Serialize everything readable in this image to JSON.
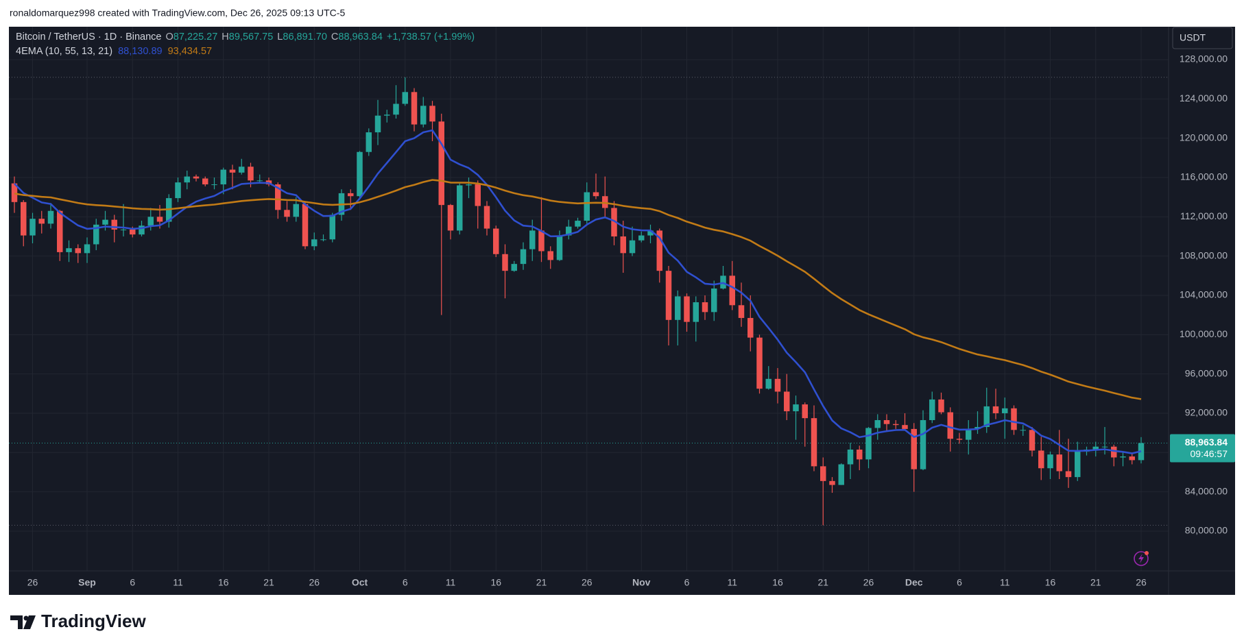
{
  "attribution": "ronaldomarquez998 created with TradingView.com, Dec 26, 2025 09:13 UTC-5",
  "brand": "TradingView",
  "chart_data": {
    "type": "candlestick",
    "legend": {
      "symbol": "Bitcoin / TetherUS · 1D · Binance",
      "ohlc": [
        {
          "key": "O",
          "value": "87,225.27"
        },
        {
          "key": "H",
          "value": "89,567.75"
        },
        {
          "key": "L",
          "value": "86,891.70"
        },
        {
          "key": "C",
          "value": "88,963.84"
        }
      ],
      "change": "+1,738.57 (+1.99%)",
      "indicator": "4EMA (10, 55, 13, 21)",
      "indicator_values": [
        "88,130.89",
        "93,434.57"
      ]
    },
    "currency": "USDT",
    "price_tag": {
      "price": "88,963.84",
      "countdown": "09:46:57"
    },
    "up_color": "#26a69a",
    "down_color": "#ef5350",
    "grid": true,
    "categories": [
      null,
      null,
      "26",
      null,
      null,
      null,
      null,
      null,
      "Sep",
      null,
      null,
      null,
      null,
      "6",
      null,
      null,
      null,
      null,
      "11",
      null,
      null,
      null,
      null,
      "16",
      null,
      null,
      null,
      null,
      "21",
      null,
      null,
      null,
      null,
      "26",
      null,
      null,
      null,
      null,
      "Oct",
      null,
      null,
      null,
      null,
      "6",
      null,
      null,
      null,
      null,
      "11",
      null,
      null,
      null,
      null,
      "16",
      null,
      null,
      null,
      null,
      "21",
      null,
      null,
      null,
      null,
      "26",
      null,
      null,
      null,
      null,
      null,
      "Nov",
      null,
      null,
      null,
      null,
      "6",
      null,
      null,
      null,
      null,
      "11",
      null,
      null,
      null,
      null,
      "16",
      null,
      null,
      null,
      null,
      "21",
      null,
      null,
      null,
      null,
      "26",
      null,
      null,
      null,
      null,
      "Dec",
      null,
      null,
      null,
      null,
      "6",
      null,
      null,
      null,
      null,
      "11",
      null,
      null,
      null,
      null,
      "16",
      null,
      null,
      null,
      null,
      "21",
      null,
      null,
      null,
      null,
      "26"
    ],
    "ohlc": {
      "open": [
        115400,
        113500,
        110100,
        111800,
        111300,
        112600,
        108400,
        108800,
        108300,
        109200,
        111200,
        111700,
        110700,
        110700,
        110200,
        111100,
        112000,
        111500,
        113900,
        115500,
        116100,
        115900,
        115300,
        115300,
        116800,
        116500,
        117100,
        115700,
        115700,
        115300,
        112700,
        112000,
        113300,
        109000,
        109700,
        109700,
        112200,
        114400,
        114100,
        118600,
        120600,
        122300,
        122400,
        123500,
        124700,
        121400,
        123300,
        121700,
        113200,
        110600,
        115200,
        115300,
        113100,
        110800,
        108200,
        106500,
        107200,
        108700,
        110600,
        108500,
        107600,
        110100,
        111000,
        111600,
        114500,
        114100,
        112900,
        110000,
        108300,
        109600,
        110100,
        110600,
        106500,
        101500,
        103900,
        101300,
        103300,
        102300,
        104700,
        106000,
        103000,
        101700,
        99700,
        94500,
        95500,
        94200,
        92200,
        92900,
        91500,
        86600,
        85100,
        84700,
        86800,
        88300,
        87300,
        90500,
        91300,
        90900,
        90800,
        90400,
        86300,
        91300,
        93400,
        92100,
        89400,
        89300,
        90400,
        90600,
        92700,
        92000,
        92500,
        90300,
        90300,
        88200,
        86400,
        87800,
        86100,
        85500,
        88100,
        88300,
        88600,
        88600,
        87500,
        87600,
        87225.27
      ],
      "high": [
        116100,
        113700,
        112400,
        112600,
        113400,
        112700,
        109600,
        109200,
        109900,
        111800,
        112600,
        112200,
        113300,
        111000,
        111600,
        112900,
        113200,
        114300,
        116000,
        116700,
        116300,
        116100,
        116000,
        117000,
        117300,
        117900,
        117500,
        116300,
        116000,
        115500,
        113600,
        114000,
        113600,
        110400,
        110200,
        112400,
        114800,
        114800,
        118700,
        121000,
        123900,
        122900,
        125400,
        126200,
        125100,
        124200,
        123800,
        122500,
        113300,
        115400,
        116000,
        115700,
        113600,
        111100,
        109200,
        107500,
        109400,
        111700,
        114000,
        109000,
        110600,
        111700,
        111900,
        115500,
        116400,
        116100,
        113600,
        111600,
        111000,
        110500,
        111200,
        110800,
        107000,
        104500,
        104200,
        103900,
        104000,
        105500,
        107000,
        107500,
        105300,
        104000,
        100000,
        96800,
        96600,
        96000,
        93800,
        93100,
        92800,
        87500,
        85500,
        86900,
        89000,
        88700,
        90600,
        91900,
        91900,
        91300,
        92000,
        91000,
        92300,
        94200,
        94100,
        92600,
        90000,
        91300,
        92200,
        94600,
        94500,
        93600,
        92800,
        90800,
        90600,
        89600,
        88100,
        90300,
        89400,
        89100,
        88600,
        89100,
        90600,
        88800,
        88000,
        87900,
        89567.75
      ],
      "low": [
        112400,
        109000,
        109300,
        110300,
        110800,
        107500,
        107400,
        107300,
        107300,
        108600,
        110600,
        109400,
        110000,
        109900,
        110000,
        110600,
        110800,
        110900,
        113500,
        114800,
        115600,
        115100,
        114800,
        114300,
        114800,
        116300,
        115000,
        115400,
        115100,
        111800,
        111500,
        111500,
        108700,
        108600,
        109500,
        109400,
        111600,
        112700,
        113900,
        118200,
        119300,
        121600,
        122000,
        123300,
        120700,
        121100,
        119700,
        102000,
        109700,
        110200,
        113900,
        110800,
        110100,
        107900,
        103700,
        106400,
        106600,
        107500,
        107400,
        106700,
        107500,
        109700,
        110800,
        111300,
        113800,
        112000,
        109100,
        106300,
        108000,
        109400,
        109300,
        105300,
        98900,
        98900,
        100300,
        99300,
        101500,
        101400,
        104600,
        102500,
        100800,
        98300,
        94000,
        94400,
        93000,
        91300,
        89300,
        88600,
        86100,
        80600,
        83900,
        84700,
        85300,
        86200,
        86400,
        89300,
        90100,
        90400,
        90300,
        84000,
        86200,
        91000,
        91900,
        88100,
        88900,
        87800,
        89900,
        90000,
        91400,
        89400,
        89800,
        89700,
        87600,
        85200,
        85300,
        85300,
        84400,
        85100,
        87700,
        87600,
        87800,
        86600,
        86600,
        86800,
        86891.7
      ],
      "close": [
        113500,
        110100,
        111800,
        111300,
        112600,
        108400,
        108800,
        108300,
        109200,
        111200,
        111700,
        110700,
        110700,
        110200,
        111100,
        112000,
        111500,
        113900,
        115500,
        116100,
        115900,
        115300,
        115300,
        116800,
        116500,
        117100,
        115700,
        115700,
        115300,
        112700,
        112000,
        113300,
        109000,
        109700,
        109700,
        112200,
        114400,
        114100,
        118600,
        120600,
        122300,
        122400,
        123500,
        124700,
        121400,
        123300,
        121700,
        113200,
        110600,
        115200,
        115300,
        113100,
        110800,
        108200,
        106500,
        107200,
        108700,
        110600,
        108500,
        107600,
        110100,
        111000,
        111600,
        114500,
        114100,
        112900,
        110000,
        108300,
        109600,
        110100,
        110600,
        106500,
        101500,
        103900,
        101300,
        103300,
        102300,
        104700,
        106000,
        103000,
        101700,
        99700,
        94500,
        95500,
        94200,
        92200,
        92900,
        91500,
        86600,
        85100,
        84700,
        86800,
        88300,
        87300,
        90500,
        91300,
        90900,
        90800,
        90400,
        86300,
        91300,
        93400,
        92100,
        89400,
        89300,
        90400,
        90600,
        92700,
        92000,
        92500,
        90300,
        90300,
        88200,
        86400,
        87800,
        86100,
        85500,
        88100,
        88300,
        88600,
        88600,
        87500,
        87600,
        87225.27,
        88963.84
      ]
    },
    "series": [
      {
        "color": "#2f50d0",
        "values": [
          115381,
          114420,
          113943,
          113462,
          113305,
          112412,
          111755,
          111126,
          110775,
          110852,
          111006,
          110950,
          110904,
          110776,
          110835,
          111047,
          111129,
          111633,
          112337,
          113022,
          113546,
          113865,
          114126,
          114613,
          114956,
          115346,
          115410,
          115463,
          115433,
          114936,
          114402,
          114201,
          113254,
          112607,
          112078,
          112100,
          112519,
          112807,
          113861,
          115087,
          116400,
          117492,
          118585,
          119698,
          120008,
          120607,
          120806,
          119422,
          117816,
          117340,
          116969,
          116265,
          115270,
          113983,
          112621,
          111634,
          111100,
          111009,
          110552,
          110015,
          110030,
          110207,
          110461,
          111196,
          111725,
          111939,
          111586,
          110988,
          110735,
          110619,
          110616,
          109867,
          108344,
          107535,
          106400,
          105836,
          105192,
          105102,
          105265,
          104853,
          104279,
          103446,
          101818,
          100668,
          99491,
          98164,
          97206,
          96168,
          94427,
          92729,
          91268,
          90455,
          90063,
          89560,
          89731,
          90017,
          90178,
          90291,
          90311,
          89581,
          89894,
          90532,
          90817,
          90559,
          90330,
          90343,
          90390,
          90810,
          91027,
          91295,
          91114,
          90966,
          90463,
          89724,
          89374,
          88778,
          88181,
          88166,
          88190,
          88265,
          88326,
          88176,
          88071,
          87917,
          88130.89
        ]
      },
      {
        "color": "#c27b16",
        "values": [
          114368,
          114216,
          114130,
          114029,
          113978,
          113779,
          113601,
          113412,
          113262,
          113188,
          113135,
          113048,
          112964,
          112865,
          112802,
          112773,
          112728,
          112770,
          112867,
          112982,
          113086,
          113165,
          113241,
          113368,
          113480,
          113609,
          113684,
          113756,
          113811,
          113771,
          113708,
          113693,
          113525,
          113388,
          113256,
          113218,
          113260,
          113290,
          113480,
          113734,
          114040,
          114338,
          114665,
          115023,
          115251,
          115538,
          115758,
          115667,
          115486,
          115476,
          115470,
          115385,
          115221,
          114970,
          114668,
          114401,
          114197,
          114069,
          113870,
          113646,
          113519,
          113429,
          113364,
          113405,
          113430,
          113411,
          113289,
          113111,
          112986,
          112883,
          112801,
          112576,
          112181,
          111885,
          111507,
          111214,
          110896,
          110675,
          110508,
          110240,
          109935,
          109570,
          109032,
          108549,
          108037,
          107472,
          106952,
          106400,
          105693,
          104958,
          104235,
          103613,
          103066,
          102503,
          102074,
          101689,
          101304,
          100929,
          100553,
          100044,
          99732,
          99506,
          99242,
          98891,
          98549,
          98258,
          97985,
          97796,
          97589,
          97407,
          97153,
          96908,
          96597,
          96233,
          95932,
          95581,
          95221,
          94967,
          94729,
          94510,
          94299,
          94056,
          93826,
          93590,
          93434.57
        ]
      }
    ],
    "ylim": [
      75950,
      131350
    ],
    "yticks": [
      {
        "value": 80000,
        "label": "80,000.00"
      },
      {
        "value": 84000,
        "label": "84,000.00"
      },
      {
        "value": 88000,
        "label": "88,000.00"
      },
      {
        "value": 92000,
        "label": "92,000.00"
      },
      {
        "value": 96000,
        "label": "96,000.00"
      },
      {
        "value": 100000,
        "label": "100,000.00"
      },
      {
        "value": 104000,
        "label": "104,000.00"
      },
      {
        "value": 108000,
        "label": "108,000.00"
      },
      {
        "value": 112000,
        "label": "112,000.00"
      },
      {
        "value": 116000,
        "label": "116,000.00"
      },
      {
        "value": 120000,
        "label": "120,000.00"
      },
      {
        "value": 124000,
        "label": "124,000.00"
      },
      {
        "value": 128000,
        "label": "128,000.00"
      }
    ]
  }
}
